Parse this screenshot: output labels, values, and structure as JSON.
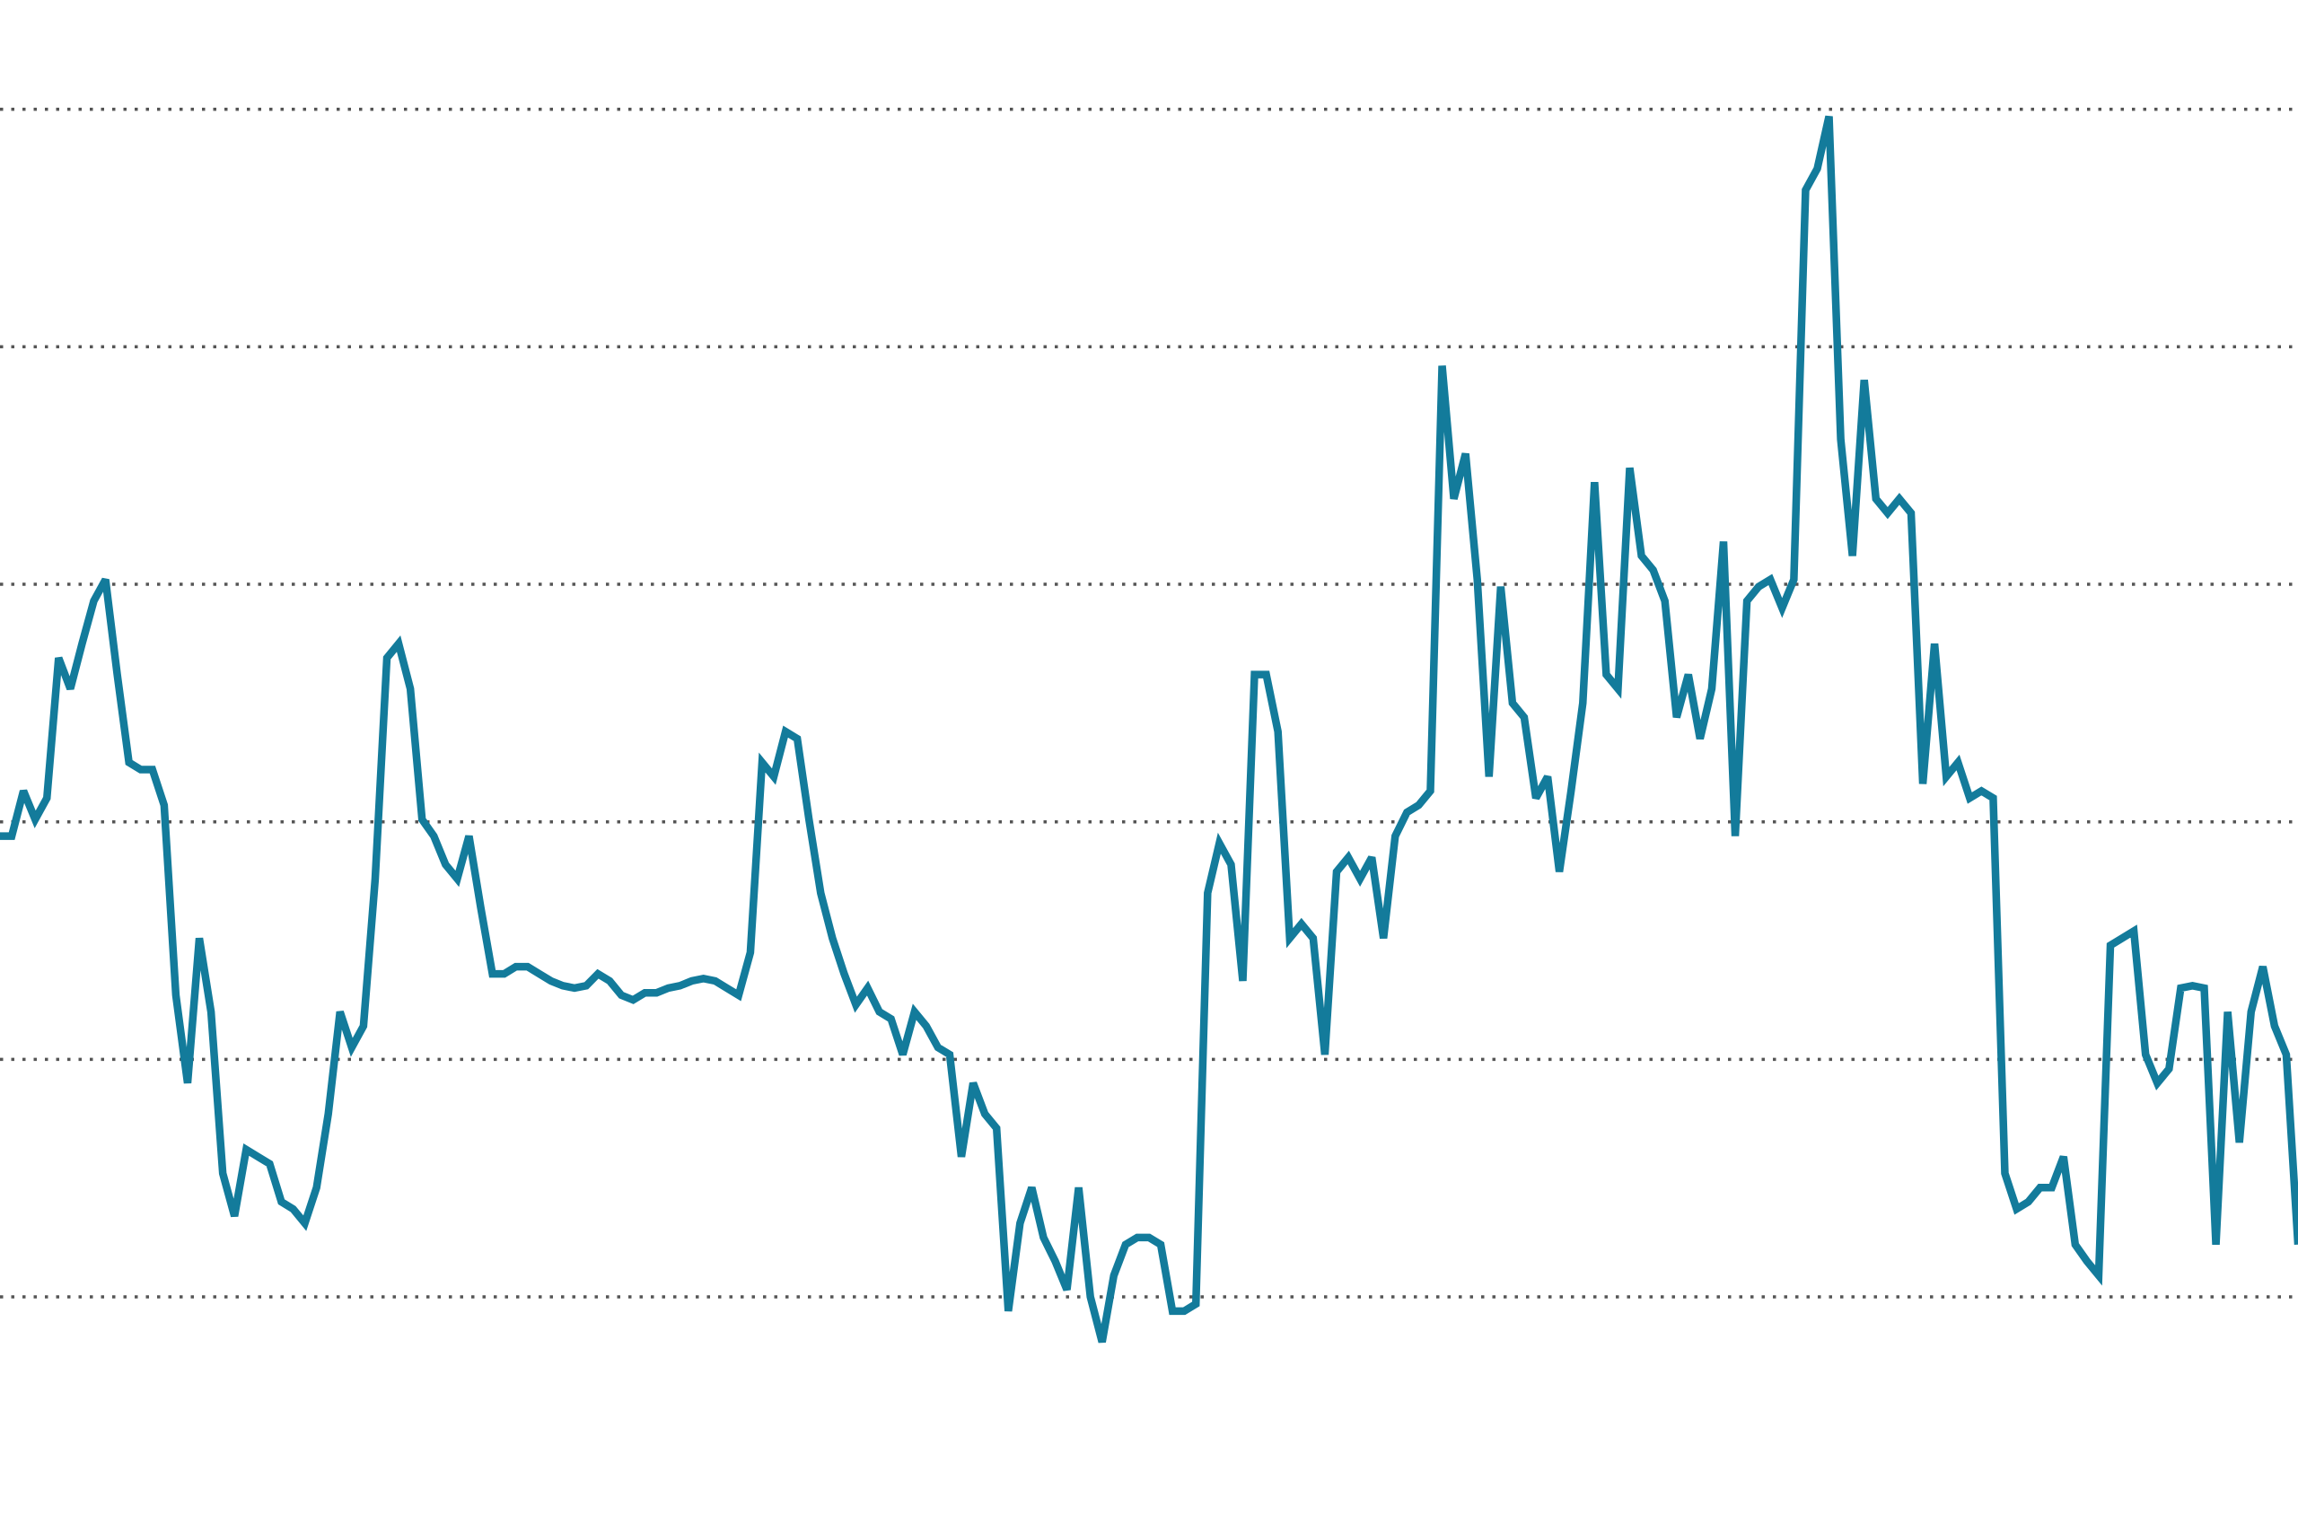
{
  "chart_data": {
    "type": "line",
    "color": "#137b9b",
    "ylim": [
      -0.99,
      5.46
    ],
    "yticks": [
      0,
      1,
      2,
      3,
      4,
      5
    ],
    "grid": true,
    "values": [
      1.94,
      1.94,
      2.13,
      2.01,
      2.1,
      2.69,
      2.56,
      2.75,
      2.93,
      3.02,
      2.62,
      2.25,
      2.22,
      2.22,
      2.07,
      1.27,
      0.9,
      1.51,
      1.2,
      0.52,
      0.34,
      0.62,
      0.59,
      0.56,
      0.4,
      0.37,
      0.31,
      0.46,
      0.77,
      1.2,
      1.05,
      1.14,
      1.76,
      2.69,
      2.75,
      2.56,
      2.01,
      1.94,
      1.82,
      1.76,
      1.94,
      1.64,
      1.36,
      1.36,
      1.39,
      1.39,
      1.36,
      1.33,
      1.31,
      1.3,
      1.31,
      1.36,
      1.33,
      1.27,
      1.25,
      1.28,
      1.28,
      1.3,
      1.31,
      1.33,
      1.34,
      1.33,
      1.3,
      1.27,
      1.45,
      2.25,
      2.19,
      2.38,
      2.35,
      2.01,
      1.7,
      1.51,
      1.36,
      1.23,
      1.3,
      1.2,
      1.17,
      1.02,
      1.2,
      1.14,
      1.05,
      1.02,
      0.59,
      0.9,
      0.77,
      0.71,
      -0.06,
      0.31,
      0.46,
      0.25,
      0.15,
      0.03,
      0.46,
      0,
      -0.19,
      0.09,
      0.22,
      0.25,
      0.25,
      0.22,
      -0.06,
      -0.06,
      -0.03,
      1.7,
      1.91,
      1.82,
      1.33,
      2.62,
      2.62,
      2.38,
      1.51,
      1.57,
      1.51,
      1.02,
      1.79,
      1.85,
      1.76,
      1.85,
      1.51,
      1.94,
      2.04,
      2.07,
      2.13,
      3.92,
      3.36,
      3.55,
      3.02,
      2.19,
      2.99,
      2.5,
      2.44,
      2.1,
      2.19,
      1.79,
      2.13,
      2.5,
      3.43,
      2.62,
      2.56,
      3.49,
      3.12,
      3.06,
      2.93,
      2.44,
      2.62,
      2.35,
      2.56,
      3.18,
      1.94,
      2.93,
      2.99,
      3.02,
      2.9,
      3.02,
      4.66,
      4.75,
      4.97,
      3.61,
      3.12,
      3.86,
      3.36,
      3.3,
      3.36,
      3.3,
      2.16,
      2.75,
      2.19,
      2.25,
      2.1,
      2.13,
      2.1,
      0.52,
      0.37,
      0.4,
      0.46,
      0.46,
      0.59,
      0.22,
      0.15,
      0.09,
      1.48,
      1.51,
      1.54,
      1.02,
      0.9,
      0.96,
      1.3,
      1.31,
      1.3,
      0.22,
      1.2,
      0.65,
      1.2,
      1.39,
      1.14,
      1.02,
      0.22
    ]
  }
}
